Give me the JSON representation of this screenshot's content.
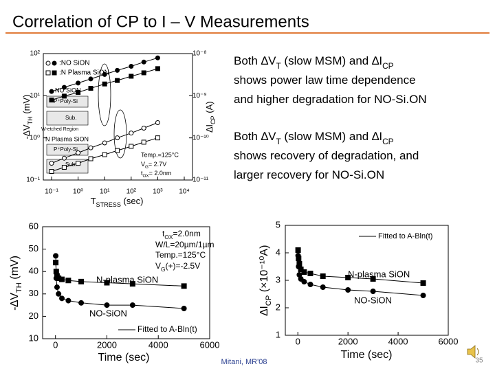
{
  "header": {
    "title": "Correlation of CP to I – V Measurements"
  },
  "bullets": [
    {
      "lines": [
        [
          {
            "text": "Both ∆V"
          },
          {
            "text": "T",
            "sub": true
          },
          {
            "text": " (slow MSM) and ∆I"
          },
          {
            "text": "CP",
            "sub": true
          }
        ],
        [
          {
            "text": "shows power law time dependence"
          }
        ],
        [
          {
            "text": "and higher degradation for NO-Si.ON"
          }
        ]
      ]
    },
    {
      "lines": [
        [
          {
            "text": "Both ∆V"
          },
          {
            "text": "T",
            "sub": true
          },
          {
            "text": " (slow MSM) and ∆I"
          },
          {
            "text": "CP",
            "sub": true
          }
        ],
        [
          {
            "text": "shows recovery of degradation, and"
          }
        ],
        [
          {
            "text": "larger recovery for NO-Si.ON"
          }
        ]
      ]
    }
  ],
  "footer": {
    "citation": "Mitani, MR'08",
    "page": "35"
  },
  "chart_data": [
    {
      "type": "line",
      "xlog": true,
      "ylog": true,
      "xlabel": [
        {
          "text": "T"
        },
        {
          "text": "STRESS",
          "sub": true
        },
        {
          "text": " (sec)"
        }
      ],
      "ylabel": [
        {
          "text": "-∆V"
        },
        {
          "text": "TH",
          "sub": true
        },
        {
          "text": " (mV)"
        }
      ],
      "y2label": [
        {
          "text": "∆I"
        },
        {
          "text": "CP",
          "sub": true
        },
        {
          "text": " (A)"
        }
      ],
      "x": [
        0.1,
        0.3,
        1,
        3,
        10,
        30,
        100,
        300,
        1000
      ],
      "xlim": [
        0.1,
        10000
      ],
      "xticks": [
        {
          "value": 0.1,
          "label": "10⁻¹"
        },
        {
          "value": 1,
          "label": "10⁰"
        },
        {
          "value": 10,
          "label": "10¹"
        },
        {
          "value": 100,
          "label": "10²"
        },
        {
          "value": 1000,
          "label": "10³"
        },
        {
          "value": 10000,
          "label": "10⁴"
        }
      ],
      "ylim": [
        0.1,
        100
      ],
      "yticks": [
        {
          "value": 0.1,
          "label": "10⁻¹"
        },
        {
          "value": 1,
          "label": "10⁰"
        },
        {
          "value": 10,
          "label": "10¹"
        },
        {
          "value": 100,
          "label": "10²"
        }
      ],
      "y2lim": [
        1e-11,
        1e-08
      ],
      "y2ticks": [
        {
          "value": 1e-11,
          "label": "10⁻¹¹"
        },
        {
          "value": 1e-10,
          "label": "10⁻¹⁰"
        },
        {
          "value": 1e-09,
          "label": "10⁻⁹"
        },
        {
          "value": 1e-08,
          "label": "10⁻⁸"
        }
      ],
      "series": [
        {
          "name": ":NO SiON",
          "marker": "circle",
          "filled": true,
          "color": "#000000",
          "values": [
            12.6,
            15.8,
            20,
            25,
            32,
            40,
            50,
            63,
            79
          ]
        },
        {
          "name": ":N Plasma SiON",
          "marker": "square",
          "filled": true,
          "color": "#000000",
          "values": [
            7.9,
            9.8,
            12,
            15,
            19,
            23,
            29,
            35,
            44
          ]
        },
        {
          "marker": "circle",
          "filled": false,
          "color": "#000000",
          "axis": "y2",
          "values": [
            2.5e-11,
            3.3e-11,
            4.4e-11,
            5.8e-11,
            7.6e-11,
            1e-10,
            1.3e-10,
            1.7e-10,
            2.3e-10
          ]
        },
        {
          "marker": "square",
          "filled": false,
          "color": "#000000",
          "axis": "y2",
          "values": [
            1.6e-11,
            2e-11,
            2.5e-11,
            3.2e-11,
            4e-11,
            5e-11,
            6.3e-11,
            7.9e-11,
            1e-10
          ]
        }
      ],
      "annotations": [
        "NO SiON",
        "P⁺Poly-Si",
        "Sub.",
        "W-etched Region",
        "N Plasma SiON",
        "P⁺Poly-Si",
        "Sub.",
        "Temp.=125°C",
        [
          {
            "text": "V"
          },
          {
            "text": "G",
            "sub": true
          },
          {
            "text": "= 2.7V"
          }
        ],
        [
          {
            "text": "t"
          },
          {
            "text": "OX",
            "sub": true
          },
          {
            "text": "= 2.0nm"
          }
        ]
      ]
    },
    {
      "type": "line",
      "xlabel": "Time (sec)",
      "ylabel": [
        {
          "text": "-∆V"
        },
        {
          "text": "TH",
          "sub": true
        },
        {
          "text": " (mV)"
        }
      ],
      "x": [
        10,
        30,
        60,
        120,
        250,
        500,
        1000,
        2000,
        3000,
        5000
      ],
      "xlim": [
        -500,
        6000
      ],
      "xticks": [
        0,
        2000,
        4000,
        6000
      ],
      "ylim": [
        10,
        60
      ],
      "yticks": [
        10,
        20,
        30,
        40,
        50,
        60
      ],
      "series": [
        {
          "name": "N-plasma SiON",
          "marker": "square",
          "filled": true,
          "color": "#000000",
          "values": [
            44,
            40,
            38,
            37,
            36.5,
            36,
            35.5,
            35,
            34.5,
            33.5
          ]
        },
        {
          "name": "NO-SiON",
          "marker": "circle",
          "filled": true,
          "color": "#000000",
          "values": [
            47,
            37,
            33,
            30,
            28,
            27,
            26,
            25,
            25,
            23.5
          ]
        }
      ],
      "annotations": [
        [
          {
            "text": "t"
          },
          {
            "text": "OX",
            "sub": true
          },
          {
            "text": "=2.0nm"
          }
        ],
        "W/L=20µm/1µm",
        "Temp.=125°C",
        [
          {
            "text": "V"
          },
          {
            "text": "G",
            "sub": true
          },
          {
            "text": "(+)=-2.5V"
          }
        ],
        "Fitted to A-Bln(t)"
      ]
    },
    {
      "type": "line",
      "xlabel": "Time (sec)",
      "ylabel": [
        {
          "text": "∆I"
        },
        {
          "text": "CP",
          "sub": true
        },
        {
          "text": " (×10⁻¹⁰A)"
        }
      ],
      "x": [
        10,
        30,
        60,
        120,
        250,
        500,
        1000,
        2000,
        3000,
        5000
      ],
      "xlim": [
        -500,
        6000
      ],
      "xticks": [
        0,
        2000,
        4000,
        6000
      ],
      "ylim": [
        1,
        5
      ],
      "yticks": [
        1,
        2,
        3,
        4,
        5
      ],
      "series": [
        {
          "name": "N-plasma SiON",
          "marker": "square",
          "filled": true,
          "color": "#000000",
          "values": [
            4.1,
            3.8,
            3.6,
            3.4,
            3.3,
            3.25,
            3.15,
            3.1,
            3.05,
            2.9
          ]
        },
        {
          "name": "NO-SiON",
          "marker": "circle",
          "filled": true,
          "color": "#000000",
          "values": [
            3.9,
            3.5,
            3.2,
            3.05,
            2.95,
            2.85,
            2.75,
            2.65,
            2.6,
            2.45
          ]
        }
      ],
      "annotations": [
        "Fitted to A-Bln(t)"
      ]
    }
  ]
}
